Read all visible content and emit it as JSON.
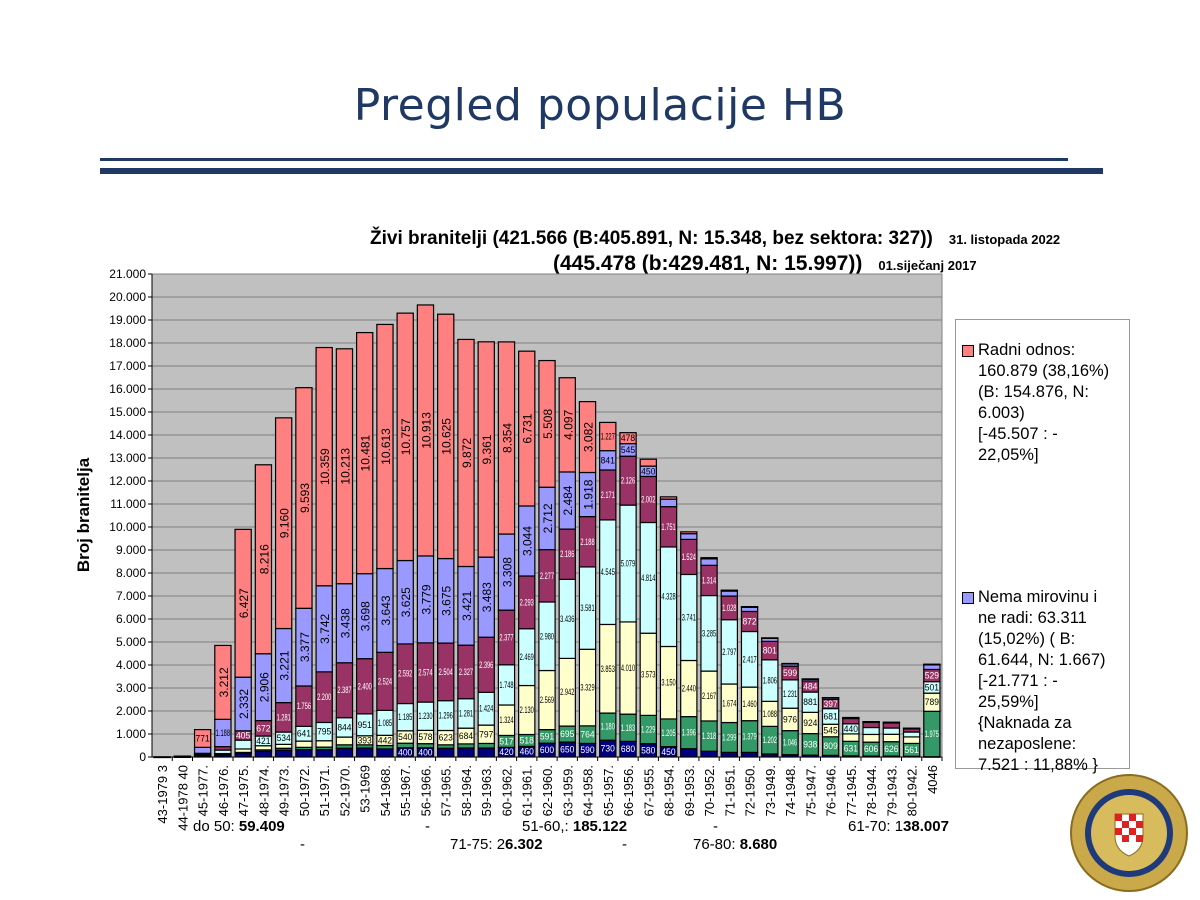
{
  "slide": {
    "title": "Pregled populacije HB"
  },
  "chart_header": {
    "line1": "Živi branitelji (421.566 (B:405.891, N: 15.348, bez sektora: 327))",
    "line1_date": "31. listopada 2022",
    "line2": "(445.478 (b:429.481, N: 15.997))",
    "line2_date": "01.siječanj 2017"
  },
  "summary": {
    "row1": [
      {
        "label": "do  50: ",
        "value": "59.409"
      },
      {
        "label": "-",
        "value": ""
      },
      {
        "label": "51-60,: ",
        "value": "185.122"
      },
      {
        "label": "-",
        "value": ""
      },
      {
        "label": "61-70: 1",
        "value": "38.007"
      }
    ],
    "row2": [
      {
        "label": "-",
        "value": ""
      },
      {
        "label": "71-75: 2",
        "value": "6.302"
      },
      {
        "label": "-",
        "value": ""
      },
      {
        "label": "76-80: ",
        "value": "8.680"
      }
    ]
  },
  "logo": {
    "text": "REPUBLIKA HRVATSKA · MINISTARSTVO HRVATSKIH BRANITELJA"
  },
  "chart_data": {
    "type": "bar",
    "stacked": true,
    "title": "",
    "xlabel": "",
    "ylabel": "Broj branitelja",
    "ylim": [
      0,
      21000
    ],
    "ytick_step": 1000,
    "grid": true,
    "legend_position": "right",
    "categories": [
      "43-1979  3",
      "44-1978  40",
      "45-1977.",
      "46-1976.",
      "47-1975.",
      "48-1974.",
      "49-1973.",
      "50-1972.",
      "51-1971.",
      "52-1970.",
      "53-1969",
      "54-1968.",
      "55-1967.",
      "56-1966.",
      "57-1965.",
      "58-1964.",
      "59-1963.",
      "60-1962.",
      "61-1961.",
      "62-1960.",
      "63-1959.",
      "64-1958.",
      "65-1957.",
      "66-1956.",
      "67-1955.",
      "68-1954.",
      "69-1953.",
      "70-1952.",
      "71-1951.",
      "72-1950.",
      "73-1949.",
      "74-1948.",
      "75-1947.",
      "76-1946.",
      "77-1945.",
      "78-1944.",
      "79-1943.",
      "80-1942.",
      "4046"
    ],
    "series": [
      {
        "color": "#000080",
        "values": [
          1,
          5,
          40,
          70,
          150,
          250,
          300,
          320,
          320,
          380,
          390,
          350,
          400,
          400,
          380,
          390,
          390,
          420,
          460,
          600,
          650,
          590,
          730,
          680,
          580,
          450,
          360,
          250,
          200,
          200,
          130,
          100,
          80,
          70,
          50,
          40,
          40,
          30,
          12
        ]
      },
      {
        "color": "#339966",
        "values": [
          0,
          5,
          30,
          30,
          50,
          60,
          80,
          100,
          110,
          150,
          140,
          150,
          200,
          180,
          150,
          180,
          200,
          517,
          518,
          591,
          695,
          764,
          1180,
          1183,
          1229,
          1205,
          1396,
          1318,
          1299,
          1379,
          1202,
          1046,
          938,
          809,
          631,
          606,
          626,
          561,
          1975
        ]
      },
      {
        "color": "#ffffcc",
        "values": [
          0,
          5,
          30,
          50,
          150,
          180,
          170,
          271,
          277,
          336,
          393,
          442,
          540,
          578,
          623,
          684,
          797,
          1324,
          2130,
          2569,
          2942,
          3329,
          3853,
          4010,
          3573,
          3150,
          2440,
          2167,
          1674,
          1460,
          1088,
          976,
          924,
          545,
          323,
          335,
          321,
          282,
          789
        ]
      },
      {
        "color": "#ccffff",
        "values": [
          0,
          5,
          30,
          150,
          383,
          421,
          534,
          641,
          795,
          844,
          951,
          1085,
          1185,
          1230,
          1296,
          1281,
          1424,
          1748,
          2469,
          2980,
          3436,
          3581,
          4545,
          5079,
          4814,
          4328,
          3741,
          3285,
          2797,
          2417,
          1806,
          1231,
          881,
          681,
          440,
          301,
          272,
          212,
          501
        ]
      },
      {
        "color": "#993366",
        "values": [
          0,
          5,
          30,
          150,
          405,
          672,
          1281,
          1756,
          2200,
          2387,
          2400,
          2524,
          2592,
          2574,
          2504,
          2327,
          2396,
          2377,
          2293,
          2277,
          2186,
          2188,
          2171,
          2126,
          2002,
          1751,
          1524,
          1314,
          1028,
          872,
          801,
          599,
          484,
          397,
          229,
          221,
          220,
          140,
          529
        ]
      },
      {
        "color": "#9999ff",
        "name": "Nema mirovinu i ne radi",
        "values": [
          1,
          5,
          260,
          1188,
          2332,
          2906,
          3221,
          3377,
          3742,
          3438,
          3698,
          3643,
          3625,
          3779,
          3675,
          3421,
          3483,
          3308,
          3044,
          2712,
          2484,
          1918,
          841,
          545,
          450,
          327,
          248,
          282,
          216,
          181,
          134,
          100,
          80,
          70,
          40,
          30,
          30,
          25,
          200
        ]
      },
      {
        "color": "#ff8080",
        "name": "Radni odnos",
        "values": [
          1,
          10,
          771,
          3212,
          6427,
          8216,
          9160,
          9593,
          10359,
          10213,
          10481,
          10613,
          10757,
          10913,
          10625,
          9872,
          9361,
          8354,
          6731,
          5508,
          4097,
          3082,
          1227,
          478,
          300,
          100,
          80,
          50,
          40,
          30,
          20,
          15,
          10,
          10,
          5,
          5,
          5,
          5,
          30
        ]
      }
    ],
    "legend": [
      {
        "color": "#ff8080",
        "text": "Radni odnos:\n160.879 (38,16%)\n(B: 154.876, N:\n6.003)\n[-45.507 : -\n22,05%]"
      },
      {
        "color": "#9999ff",
        "text": "Nema mirovinu i\nne radi: 63.311\n(15,02%) ( B:\n61.644, N: 1.667)\n[-21.771 : -\n25,59%]\n{Naknada za\nnezaposlene:\n7.521 : 11,88% }"
      }
    ]
  }
}
